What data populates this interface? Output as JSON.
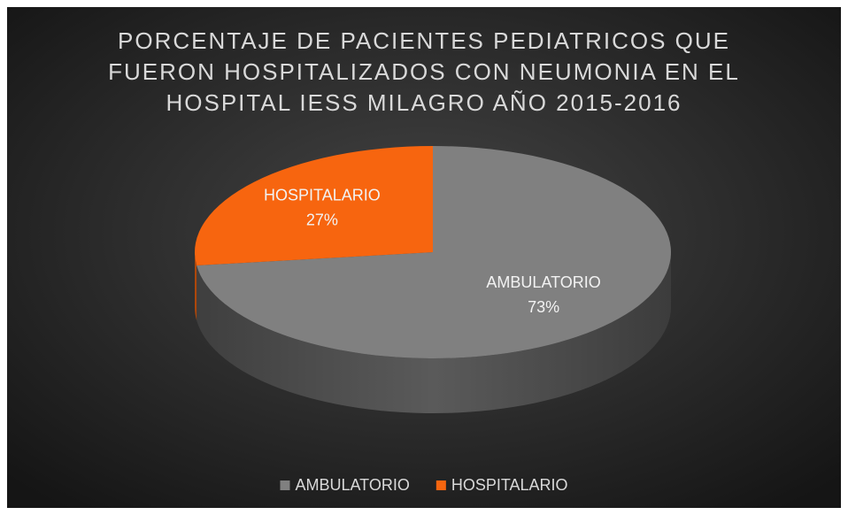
{
  "chart_data": {
    "type": "pie",
    "title": [
      "PORCENTAJE DE PACIENTES PEDIATRICOS QUE",
      "FUERON HOSPITALIZADOS CON NEUMONIA EN EL",
      "HOSPITAL IESS MILAGRO AÑO 2015-2016"
    ],
    "categories": [
      "AMBULATORIO",
      "HOSPITALARIO"
    ],
    "values": [
      73,
      27
    ],
    "value_labels": [
      "73%",
      "27%"
    ],
    "colors": [
      "#808080",
      "#f7650f"
    ],
    "legend": "bottom"
  }
}
